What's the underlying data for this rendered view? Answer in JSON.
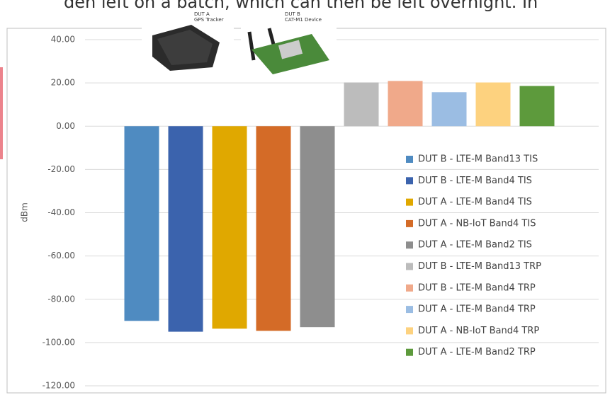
{
  "header_text": "den left on a batch, which can then be left overnight. In",
  "images": [
    {
      "lines": [
        "DUT A",
        "GPS Tracker"
      ]
    },
    {
      "lines": [
        "DUT B",
        "CAT-M1 Device"
      ]
    }
  ],
  "chart_data": {
    "type": "bar",
    "y_label": "dBm",
    "categories": [
      "DUT B - LTE-M Band13 TIS",
      "DUT B - LTE-M Band4 TIS",
      "DUT A - LTE-M Band4 TIS",
      "DUT A - NB-IoT Band4 TIS",
      "DUT A - LTE-M Band2 TIS",
      "DUT B - LTE-M Band13 TRP",
      "DUT B - LTE-M Band4 TRP",
      "DUT A - LTE-M Band4 TRP",
      "DUT A - NB-IoT Band4 TRP",
      "DUT A - LTE-M Band2 TRP"
    ],
    "values": [
      -90,
      -95,
      -93.6,
      -94.6,
      -92.9,
      20.2,
      20.9,
      15.7,
      20.2,
      18.6
    ],
    "colors": [
      "#4f8bc1",
      "#3b63ad",
      "#e0a800",
      "#d46b27",
      "#8e8e8e",
      "#bcbcbc",
      "#f0a98a",
      "#9bbde3",
      "#fdd27f",
      "#5d9a3c"
    ],
    "ylim": [
      -120,
      40
    ],
    "yticks": [
      {
        "value": -120,
        "label": "-120.00"
      },
      {
        "value": -100,
        "label": "-100.00"
      },
      {
        "value": -80,
        "label": "-80.00"
      },
      {
        "value": -60,
        "label": "-60.00"
      },
      {
        "value": -40,
        "label": "-40.00"
      },
      {
        "value": -20,
        "label": "-20.00"
      },
      {
        "value": 0,
        "label": "0.00"
      },
      {
        "value": 20,
        "label": "20.00"
      },
      {
        "value": 40,
        "label": "40.00"
      }
    ],
    "grid": true,
    "legend": "right"
  }
}
